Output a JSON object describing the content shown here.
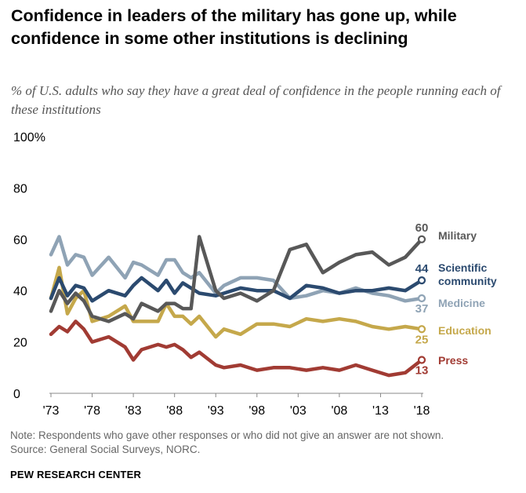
{
  "title": "Confidence in leaders of the military has gone up, while confidence in some other institutions is declining",
  "subtitle": "% of U.S. adults who say they have a great deal of confidence in the people running each of these institutions",
  "note": "Note: Respondents who gave other responses or who did not give an answer are not shown.",
  "source": "Source: General Social Surveys, NORC.",
  "brand": "PEW RESEARCH CENTER",
  "chart_data": {
    "type": "line",
    "xlim": [
      1973,
      2018
    ],
    "ylim": [
      0,
      100
    ],
    "y_ticks": [
      0,
      20,
      40,
      60,
      80,
      100
    ],
    "y_tick_labels": [
      "0",
      "20",
      "40",
      "60",
      "80",
      "100%"
    ],
    "x_ticks": [
      1973,
      1978,
      1983,
      1988,
      1993,
      1998,
      2003,
      2008,
      2013,
      2018
    ],
    "x_tick_labels": [
      "'73",
      "'78",
      "'83",
      "'88",
      "'93",
      "'98",
      "'03",
      "'08",
      "'13",
      "'18"
    ],
    "grid": false,
    "legend": "inline-right",
    "x": [
      1973,
      1974,
      1975,
      1976,
      1977,
      1978,
      1980,
      1982,
      1983,
      1984,
      1986,
      1987,
      1988,
      1989,
      1990,
      1991,
      1993,
      1994,
      1996,
      1998,
      2000,
      2002,
      2004,
      2006,
      2008,
      2010,
      2012,
      2014,
      2016,
      2018
    ],
    "series": [
      {
        "name": "Military",
        "label_text": "Military",
        "end_value": "60",
        "color": "#585858",
        "values": [
          32,
          40,
          35,
          39,
          36,
          30,
          28,
          31,
          29,
          35,
          32,
          35,
          35,
          33,
          33,
          61,
          40,
          37,
          39,
          36,
          40,
          56,
          58,
          47,
          51,
          54,
          55,
          50,
          53,
          60
        ]
      },
      {
        "name": "Scientific community",
        "label_lines": [
          "Scientific",
          "community"
        ],
        "end_value": "44",
        "color": "#2B4A6F",
        "values": [
          37,
          45,
          38,
          42,
          41,
          36,
          40,
          38,
          42,
          45,
          40,
          44,
          39,
          43,
          41,
          39,
          38,
          39,
          41,
          40,
          40,
          37,
          42,
          41,
          39,
          40,
          40,
          41,
          40,
          44
        ]
      },
      {
        "name": "Medicine",
        "label_text": "Medicine",
        "end_value": "37",
        "color": "#8FA3B5",
        "values": [
          54,
          61,
          50,
          54,
          53,
          46,
          53,
          45,
          51,
          50,
          46,
          52,
          52,
          47,
          45,
          47,
          39,
          42,
          45,
          45,
          44,
          37,
          38,
          40,
          39,
          41,
          39,
          38,
          36,
          37
        ]
      },
      {
        "name": "Education",
        "label_text": "Education",
        "end_value": "25",
        "color": "#C5A84B",
        "values": [
          37,
          49,
          31,
          37,
          40,
          28,
          30,
          34,
          28,
          28,
          28,
          35,
          30,
          30,
          27,
          30,
          22,
          25,
          23,
          27,
          27,
          26,
          29,
          28,
          29,
          28,
          26,
          25,
          26,
          25
        ]
      },
      {
        "name": "Press",
        "label_text": "Press",
        "end_value": "13",
        "color": "#A13B33",
        "values": [
          23,
          26,
          24,
          28,
          25,
          20,
          22,
          18,
          13,
          17,
          19,
          18,
          19,
          17,
          14,
          16,
          11,
          10,
          11,
          9,
          10,
          10,
          9,
          10,
          9,
          11,
          9,
          7,
          8,
          13
        ]
      }
    ]
  }
}
